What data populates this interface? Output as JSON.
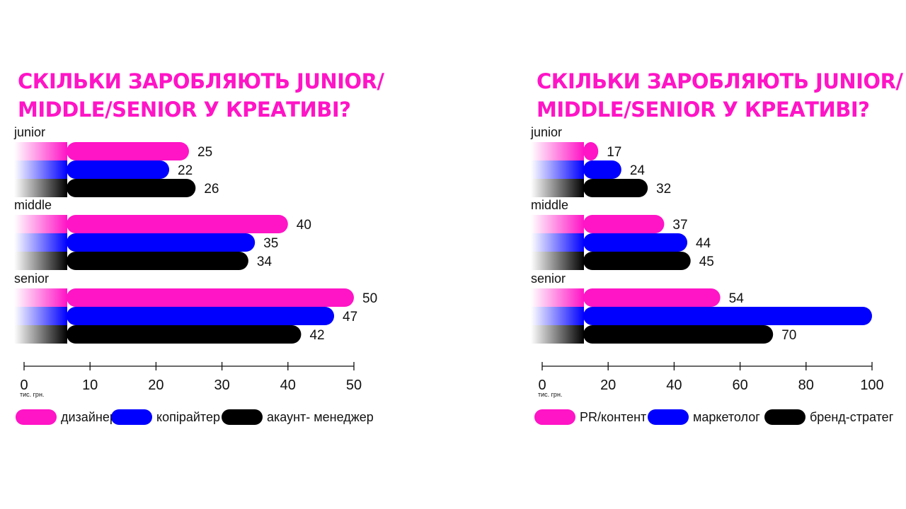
{
  "chart_data": [
    {
      "type": "bar",
      "title": "СКІЛЬКИ ЗАРОБЛЯЮТЬ JUNIOR/\nMIDDLE/SENIOR У КРЕАТИВІ?",
      "unit": "тис. грн.",
      "orientation": "horizontal",
      "categories": [
        "junior",
        "middle",
        "senior"
      ],
      "series": [
        {
          "name": "дизайнер",
          "color": "#ff14c6",
          "values": [
            25,
            40,
            50
          ]
        },
        {
          "name": "копірайтер",
          "color": "#0000ff",
          "values": [
            22,
            35,
            47
          ]
        },
        {
          "name": "акаунт- менеджер",
          "color": "#000000",
          "values": [
            26,
            34,
            42
          ]
        }
      ],
      "xlim": [
        0,
        50
      ],
      "xticks": [
        0,
        10,
        20,
        30,
        40,
        50
      ],
      "value_labels": [
        [
          "25",
          "40",
          "50"
        ],
        [
          "22",
          "35",
          "47"
        ],
        [
          "26",
          "34",
          "42"
        ]
      ],
      "legend_position": "bottom",
      "grid": false
    },
    {
      "type": "bar",
      "title": "СКІЛЬКИ ЗАРОБЛЯЮТЬ JUNIOR/\nMIDDLE/SENIOR У КРЕАТИВІ?",
      "unit": "тис. грн.",
      "orientation": "horizontal",
      "categories": [
        "junior",
        "middle",
        "senior"
      ],
      "series": [
        {
          "name": "PR/контент",
          "color": "#ff14c6",
          "values": [
            17,
            37,
            54
          ]
        },
        {
          "name": "маркетолог",
          "color": "#0000ff",
          "values": [
            24,
            44,
            100
          ]
        },
        {
          "name": "бренд-стратег",
          "color": "#000000",
          "values": [
            32,
            45,
            70
          ]
        }
      ],
      "xlim": [
        0,
        100
      ],
      "xticks": [
        0,
        20,
        40,
        60,
        80,
        100
      ],
      "value_labels": [
        [
          "17",
          "37",
          "54"
        ],
        [
          "24",
          "44",
          ""
        ],
        [
          "32",
          "45",
          "70"
        ]
      ],
      "legend_position": "bottom",
      "grid": false
    }
  ]
}
